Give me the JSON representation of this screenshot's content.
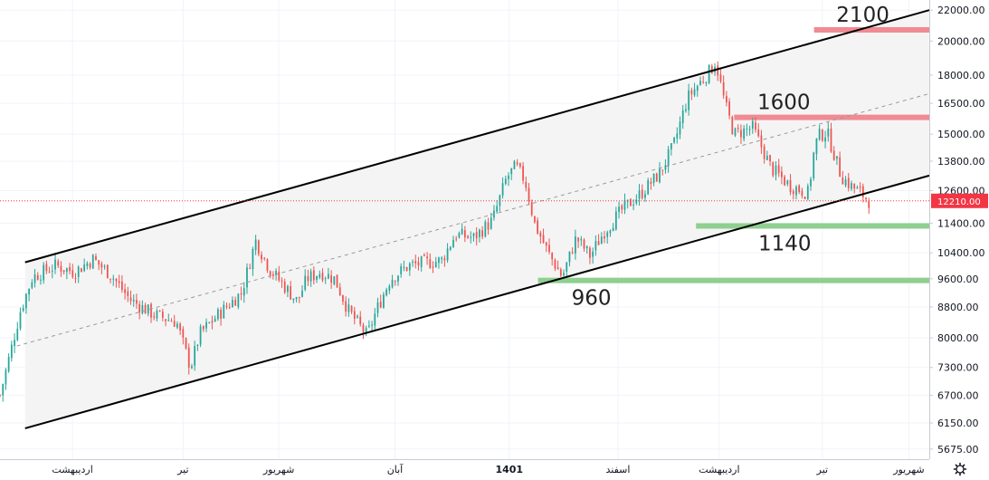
{
  "chart_data": {
    "type": "candlestick",
    "title": "",
    "xlabel": "",
    "ylabel": "",
    "y_axis": {
      "scale": "log",
      "ylim": [
        5500,
        22700
      ],
      "tick_labels": [
        "22000.00",
        "20000.00",
        "18000.00",
        "16500.00",
        "15000.00",
        "13800.00",
        "12600.00",
        "11400.00",
        "10400.00",
        "9600.00",
        "8800.00",
        "8000.00",
        "7300.00",
        "6700.00",
        "6150.00",
        "5675.00"
      ],
      "tick_values": [
        22000,
        20000,
        18000,
        16500,
        15000,
        13800,
        12600,
        11400,
        10400,
        9600,
        8800,
        8000,
        7300,
        6700,
        6150,
        5675
      ]
    },
    "x_axis": {
      "labels": [
        {
          "label": "اردیبهشت",
          "t": 0.078,
          "bold": false
        },
        {
          "label": "تیر",
          "t": 0.197,
          "bold": false
        },
        {
          "label": "شهریور",
          "t": 0.3,
          "bold": false
        },
        {
          "label": "آبان",
          "t": 0.425,
          "bold": false
        },
        {
          "label": "1401",
          "t": 0.548,
          "bold": true
        },
        {
          "label": "اسفند",
          "t": 0.665,
          "bold": false
        },
        {
          "label": "اردیبهشت",
          "t": 0.774,
          "bold": false
        },
        {
          "label": "تیر",
          "t": 0.885,
          "bold": false
        },
        {
          "label": "شهریور",
          "t": 0.978,
          "bold": false
        }
      ]
    },
    "last_price": {
      "value": 12210,
      "label": "12210.00",
      "color": "#f23645"
    },
    "channel": {
      "upper": {
        "t": [
          0.027,
          1.0
        ],
        "value": [
          10100,
          22000
        ]
      },
      "lower": {
        "t": [
          0.027,
          1.0
        ],
        "value": [
          6050,
          13200
        ]
      },
      "mid": {
        "t": [
          0.018,
          1.0
        ],
        "value": [
          7800,
          17000
        ]
      },
      "color": "#000000",
      "fill": "#f4f4f4"
    },
    "levels": [
      {
        "name": "2100",
        "value": 20700,
        "t_from": 0.876,
        "color": "#f08a93",
        "label_t": 0.9
      },
      {
        "name": "1600",
        "value": 15800,
        "t_from": 0.79,
        "color": "#f08a93",
        "label_t": 0.815
      },
      {
        "name": "1140",
        "value": 11300,
        "t_from": 0.749,
        "color": "#8fcf8f",
        "label_t": 0.816
      },
      {
        "name": "960",
        "value": 9550,
        "t_from": 0.579,
        "color": "#8fcf8f",
        "label_t": 0.615
      }
    ],
    "path": {
      "t": [
        0.0,
        0.022,
        0.035,
        0.06,
        0.08,
        0.1,
        0.12,
        0.14,
        0.165,
        0.19,
        0.205,
        0.215,
        0.235,
        0.26,
        0.275,
        0.29,
        0.32,
        0.33,
        0.345,
        0.36,
        0.375,
        0.395,
        0.405,
        0.42,
        0.44,
        0.46,
        0.475,
        0.49,
        0.51,
        0.53,
        0.545,
        0.555,
        0.565,
        0.57,
        0.575,
        0.59,
        0.605,
        0.62,
        0.635,
        0.65,
        0.67,
        0.69,
        0.71,
        0.725,
        0.74,
        0.755,
        0.765,
        0.77,
        0.78,
        0.79,
        0.81,
        0.83,
        0.85,
        0.87,
        0.875,
        0.88,
        0.89,
        0.905,
        0.915,
        0.925,
        0.935
      ],
      "v": [
        6700,
        8700,
        9650,
        10000,
        9800,
        10200,
        9700,
        9000,
        8600,
        8400,
        7300,
        8100,
        8600,
        9200,
        10800,
        9900,
        8950,
        9600,
        9800,
        9600,
        8700,
        8050,
        8700,
        9600,
        10000,
        10100,
        10150,
        11000,
        10900,
        11500,
        13100,
        13600,
        13000,
        12200,
        11400,
        10400,
        9650,
        10900,
        10300,
        11100,
        11900,
        12500,
        13300,
        14500,
        16800,
        17700,
        18300,
        18800,
        16500,
        15000,
        15300,
        13500,
        12800,
        12500,
        14000,
        14900,
        15100,
        13200,
        12800,
        12550,
        12210
      ]
    },
    "candle_count": 300,
    "colors": {
      "up": "#26a69a",
      "down": "#ef5350"
    }
  }
}
